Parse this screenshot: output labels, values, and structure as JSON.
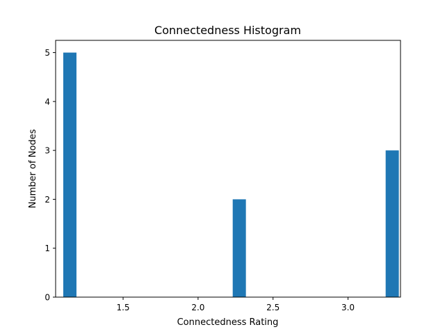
{
  "chart_data": {
    "type": "bar",
    "title": "Connectedness Histogram",
    "xlabel": "Connectedness Rating",
    "ylabel": "Number of Nodes",
    "xlim": [
      1.05,
      3.35
    ],
    "ylim": [
      0,
      5.25
    ],
    "xticks": [
      1.5,
      2.0,
      2.5,
      3.0
    ],
    "xtick_labels": [
      "1.5",
      "2.0",
      "2.5",
      "3.0"
    ],
    "yticks": [
      0,
      1,
      2,
      3,
      4,
      5
    ],
    "ytick_labels": [
      "0",
      "1",
      "2",
      "3",
      "4",
      "5"
    ],
    "bar_width": 0.088,
    "bars": [
      {
        "x": 1.145,
        "value": 5
      },
      {
        "x": 2.275,
        "value": 2
      },
      {
        "x": 3.295,
        "value": 3
      }
    ],
    "color": "#1f77b4",
    "grid": false,
    "legend": "none"
  }
}
